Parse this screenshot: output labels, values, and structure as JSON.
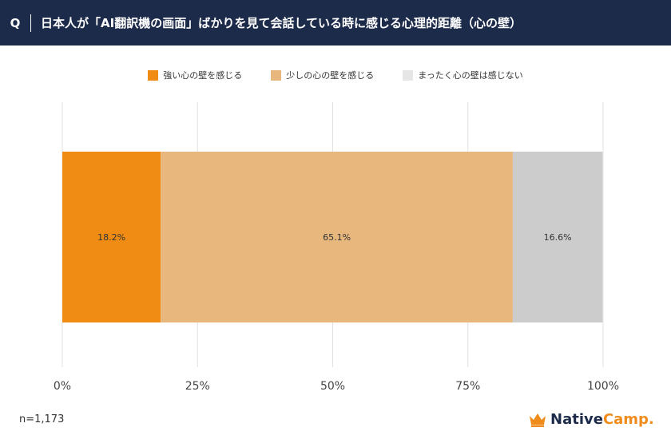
{
  "question": {
    "mark": "Q",
    "text": "日本人が「AI翻訳機の画面」ばかりを見て会話している時に感じる心理的距離（心の壁）"
  },
  "colors": {
    "header_bg": "#1d2b4a",
    "strong": "#f08c13",
    "some": "#e8b77e",
    "none": "#cccccc",
    "grid": "#e0e0e0"
  },
  "chart_data": {
    "type": "bar",
    "orientation": "horizontal",
    "stacked": true,
    "xlim": [
      0,
      100
    ],
    "x_ticks": [
      "0%",
      "25%",
      "50%",
      "75%",
      "100%"
    ],
    "tick_values": [
      0,
      25,
      50,
      75,
      100
    ],
    "legend_position": "top-center",
    "series": [
      {
        "name": "強い心の壁を感じる",
        "value": 18.2,
        "label": "18.2%",
        "color": "#f08c13"
      },
      {
        "name": "少しの心の壁を感じる",
        "value": 65.1,
        "label": "65.1%",
        "color": "#e8b77e"
      },
      {
        "name": "まったく心の壁は感じない",
        "value": 16.6,
        "label": "16.6%",
        "color": "#cccccc"
      }
    ]
  },
  "footer": {
    "sample": "n=1,173",
    "logo_part1": "Native",
    "logo_part2": "Camp."
  }
}
